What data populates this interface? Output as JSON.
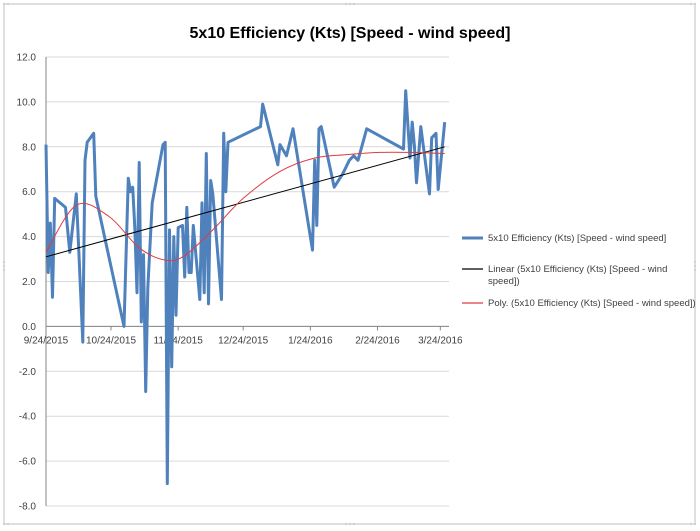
{
  "chart_data": {
    "type": "line",
    "title": "5x10 Efficiency (Kts)  [Speed - wind speed]",
    "xlabel": "",
    "ylabel": "",
    "ylim": [
      -8,
      12
    ],
    "y_ticks": [
      "12.0",
      "10.0",
      "8.0",
      "6.0",
      "4.0",
      "2.0",
      "0.0",
      "-2.0",
      "-4.0",
      "-6.0",
      "-8.0"
    ],
    "x_ticks": [
      "9/24/2015",
      "10/24/2015",
      "11/24/2015",
      "12/24/2015",
      "1/24/2016",
      "2/24/2016",
      "3/24/2016"
    ],
    "x_range": [
      "2015-09-24",
      "2016-03-28"
    ],
    "grid": true,
    "legend_position": "right",
    "series": [
      {
        "name": "5x10 Efficiency (Kts) [Speed - wind speed]",
        "color": "#4f81bd",
        "points": [
          [
            "2015-09-24",
            8.1
          ],
          [
            "2015-09-25",
            2.4
          ],
          [
            "2015-09-26",
            4.6
          ],
          [
            "2015-09-27",
            1.3
          ],
          [
            "2015-09-28",
            5.7
          ],
          [
            "2015-10-03",
            5.3
          ],
          [
            "2015-10-05",
            3.3
          ],
          [
            "2015-10-08",
            5.9
          ],
          [
            "2015-10-11",
            -0.7
          ],
          [
            "2015-10-12",
            7.4
          ],
          [
            "2015-10-13",
            8.2
          ],
          [
            "2015-10-16",
            8.6
          ],
          [
            "2015-10-17",
            5.8
          ],
          [
            "2015-10-21",
            4.0
          ],
          [
            "2015-10-30",
            0.0
          ],
          [
            "2015-11-01",
            6.6
          ],
          [
            "2015-11-02",
            6.0
          ],
          [
            "2015-11-03",
            6.2
          ],
          [
            "2015-11-04",
            4.4
          ],
          [
            "2015-11-05",
            1.5
          ],
          [
            "2015-11-06",
            7.3
          ],
          [
            "2015-11-07",
            0.2
          ],
          [
            "2015-11-08",
            3.2
          ],
          [
            "2015-11-09",
            -2.9
          ],
          [
            "2015-11-10",
            1.7
          ],
          [
            "2015-11-12",
            5.5
          ],
          [
            "2015-11-17",
            8.1
          ],
          [
            "2015-11-18",
            8.2
          ],
          [
            "2015-11-19",
            -7.0
          ],
          [
            "2015-11-20",
            4.3
          ],
          [
            "2015-11-21",
            -1.8
          ],
          [
            "2015-11-22",
            4.0
          ],
          [
            "2015-11-23",
            0.5
          ],
          [
            "2015-11-24",
            4.4
          ],
          [
            "2015-11-26",
            4.5
          ],
          [
            "2015-11-27",
            2.2
          ],
          [
            "2015-11-28",
            5.3
          ],
          [
            "2015-11-29",
            2.4
          ],
          [
            "2015-11-30",
            2.4
          ],
          [
            "2015-12-01",
            4.5
          ],
          [
            "2015-12-04",
            1.2
          ],
          [
            "2015-12-05",
            5.5
          ],
          [
            "2015-12-06",
            1.5
          ],
          [
            "2015-12-07",
            7.7
          ],
          [
            "2015-12-08",
            1.0
          ],
          [
            "2015-12-09",
            6.5
          ],
          [
            "2015-12-10",
            5.9
          ],
          [
            "2015-12-14",
            1.2
          ],
          [
            "2015-12-15",
            8.6
          ],
          [
            "2015-12-16",
            6.0
          ],
          [
            "2015-12-17",
            8.2
          ],
          [
            "2016-01-01",
            8.9
          ],
          [
            "2016-01-02",
            9.9
          ],
          [
            "2016-01-09",
            7.2
          ],
          [
            "2016-01-10",
            8.1
          ],
          [
            "2016-01-13",
            7.6
          ],
          [
            "2016-01-16",
            8.8
          ],
          [
            "2016-01-25",
            3.4
          ],
          [
            "2016-01-26",
            7.4
          ],
          [
            "2016-01-27",
            4.5
          ],
          [
            "2016-01-28",
            8.8
          ],
          [
            "2016-01-29",
            8.9
          ],
          [
            "2016-02-04",
            6.2
          ],
          [
            "2016-02-08",
            6.8
          ],
          [
            "2016-02-11",
            7.4
          ],
          [
            "2016-02-13",
            7.6
          ],
          [
            "2016-02-15",
            7.4
          ],
          [
            "2016-02-19",
            8.8
          ],
          [
            "2016-03-07",
            7.9
          ],
          [
            "2016-03-08",
            10.5
          ],
          [
            "2016-03-10",
            7.5
          ],
          [
            "2016-03-11",
            9.1
          ],
          [
            "2016-03-12",
            8.1
          ],
          [
            "2016-03-13",
            6.4
          ],
          [
            "2016-03-15",
            8.9
          ],
          [
            "2016-03-19",
            5.9
          ],
          [
            "2016-03-20",
            8.4
          ],
          [
            "2016-03-22",
            8.6
          ],
          [
            "2016-03-23",
            6.1
          ],
          [
            "2016-03-26",
            9.1
          ]
        ]
      },
      {
        "name": "Linear (5x10 Efficiency (Kts) [Speed - wind speed])",
        "color": "#000000",
        "points": [
          [
            "2015-09-24",
            3.1
          ],
          [
            "2016-03-26",
            8.0
          ]
        ]
      },
      {
        "name": "Poly. (5x10 Efficiency (Kts) [Speed - wind speed])",
        "color": "#e03c3c",
        "points": [
          [
            "2015-09-24",
            3.3
          ],
          [
            "2015-10-08",
            5.4
          ],
          [
            "2015-10-23",
            4.9
          ],
          [
            "2015-11-06",
            3.5
          ],
          [
            "2015-11-18",
            2.95
          ],
          [
            "2015-11-27",
            3.15
          ],
          [
            "2015-12-10",
            4.3
          ],
          [
            "2015-12-24",
            5.7
          ],
          [
            "2016-01-10",
            6.9
          ],
          [
            "2016-01-26",
            7.5
          ],
          [
            "2016-02-10",
            7.65
          ],
          [
            "2016-02-25",
            7.75
          ],
          [
            "2016-03-10",
            7.75
          ],
          [
            "2016-03-26",
            7.7
          ]
        ]
      }
    ]
  }
}
